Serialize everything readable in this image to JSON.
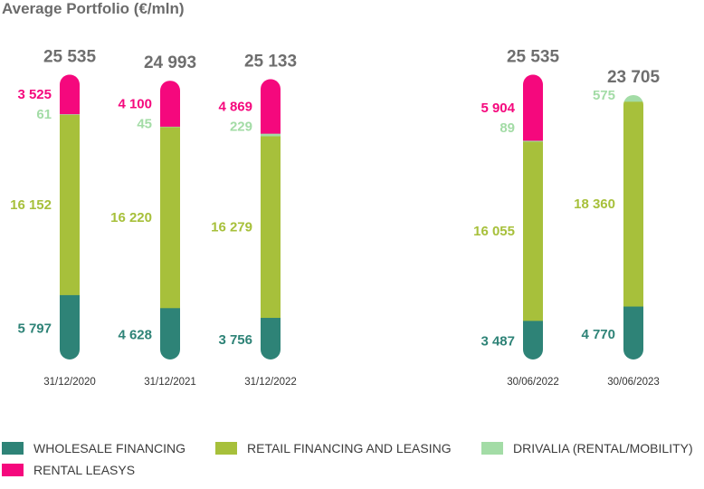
{
  "title": "Average Portfolio (€/mln)",
  "colors": {
    "wholesale": "#2e8377",
    "retail": "#a7c03b",
    "drivalia": "#a3dca6",
    "rental": "#f5087d",
    "total_text": "#6e6e6e",
    "date_text": "#333333"
  },
  "legend": [
    {
      "key": "wholesale",
      "label": "WHOLESALE FINANCING"
    },
    {
      "key": "retail",
      "label": "RETAIL FINANCING AND LEASING"
    },
    {
      "key": "drivalia",
      "label": "DRIVALIA (RENTAL/MOBILITY)"
    },
    {
      "key": "rental",
      "label": "RENTAL LEASYS"
    }
  ],
  "chart_data": {
    "type": "bar",
    "stacked": true,
    "categories": [
      "31/12/2020",
      "31/12/2021",
      "31/12/2022",
      "30/06/2022",
      "30/06/2023"
    ],
    "totals": [
      25535,
      24993,
      25133,
      25535,
      23705
    ],
    "total_labels": [
      "25 535",
      "24 993",
      "25 133",
      "25 535",
      "23 705"
    ],
    "series": [
      {
        "key": "wholesale",
        "name": "WHOLESALE FINANCING",
        "values": [
          5797,
          4628,
          3756,
          3487,
          4770
        ],
        "labels": [
          "5 797",
          "4 628",
          "3 756",
          "3 487",
          "4 770"
        ]
      },
      {
        "key": "retail",
        "name": "RETAIL FINANCING AND LEASING",
        "values": [
          16152,
          16220,
          16279,
          16055,
          18360
        ],
        "labels": [
          "16 152",
          "16 220",
          "16 279",
          "16 055",
          "18 360"
        ]
      },
      {
        "key": "drivalia",
        "name": "DRIVALIA (RENTAL/MOBILITY)",
        "values": [
          61,
          45,
          229,
          89,
          575
        ],
        "labels": [
          "61",
          "45",
          "229",
          "89",
          "575"
        ]
      },
      {
        "key": "rental",
        "name": "RENTAL LEASYS",
        "values": [
          3525,
          4100,
          4869,
          5904,
          0
        ],
        "labels": [
          "3 525",
          "4 100",
          "4 869",
          "5 904",
          ""
        ]
      }
    ]
  }
}
